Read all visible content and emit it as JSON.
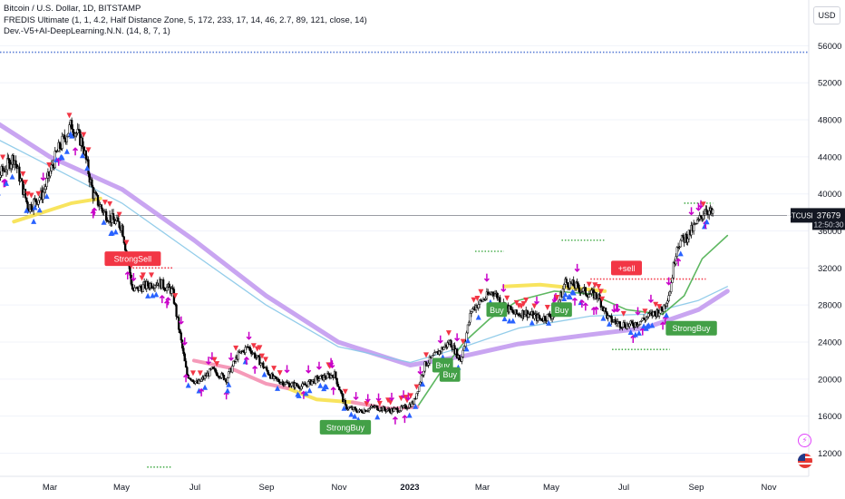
{
  "legend": {
    "symbol_line": "Bitcoin / U.S. Dollar, 1D, BITSTAMP",
    "indicator_1": "FREDIS Ultimate (1, 1, 4.2, Half Distance Zone, 5, 172, 233, 17, 14, 46, 2.7, 89, 121, close, 14)",
    "indicator_2": "Dev.-V5+AI-DeepLearning.N.N. (14, 8, 7, 1)"
  },
  "currency_button": "USD",
  "last_price_label": {
    "ticker": "BTCUSD",
    "price": "37679",
    "countdown": "12:50:30"
  },
  "signal_labels": {
    "strong_sell": "StrongSell",
    "strong_buy": "StrongBuy",
    "buy": "Buy",
    "sell": "+sell"
  },
  "colors": {
    "up_arrow": "#2962ff",
    "down_arrow": "#f23645",
    "magenta_arrow": "#c800c8",
    "strong_sell_bg": "#f23645",
    "strong_buy_bg": "#43a047",
    "purple_ma": "#c39bf0",
    "teal_ma": "#88c8e8",
    "yellow_line": "#f7e14c",
    "pink_line": "#f48fb1",
    "dotted_green": "#4caf50"
  },
  "icons": [
    "lightning-icon",
    "flag-icon"
  ],
  "chart_data": {
    "type": "candlestick",
    "symbol": "BTCUSD",
    "exchange": "BITSTAMP",
    "interval": "1D",
    "price_axis_ticks": [
      12000,
      16000,
      20000,
      24000,
      28000,
      32000,
      36000,
      40000,
      44000,
      48000,
      52000,
      56000
    ],
    "time_axis_labels": [
      "Mar",
      "May",
      "Jul",
      "Sep",
      "Nov",
      "2023",
      "Mar",
      "May",
      "Jul",
      "Sep",
      "Nov"
    ],
    "ylim": [
      9500,
      58000
    ],
    "last_price": 37679,
    "close_path": [
      {
        "m": 0.0,
        "v": 38500
      },
      {
        "m": 0.3,
        "v": 37000
      },
      {
        "m": 0.6,
        "v": 42000
      },
      {
        "m": 1.0,
        "v": 44000
      },
      {
        "m": 1.4,
        "v": 38500
      },
      {
        "m": 1.8,
        "v": 40000
      },
      {
        "m": 2.2,
        "v": 44500
      },
      {
        "m": 2.6,
        "v": 47500
      },
      {
        "m": 2.9,
        "v": 45500
      },
      {
        "m": 3.2,
        "v": 40000
      },
      {
        "m": 3.5,
        "v": 38000
      },
      {
        "m": 3.8,
        "v": 37000
      },
      {
        "m": 4.0,
        "v": 36500
      },
      {
        "m": 4.3,
        "v": 29500
      },
      {
        "m": 4.6,
        "v": 30000
      },
      {
        "m": 5.0,
        "v": 30500
      },
      {
        "m": 5.4,
        "v": 29500
      },
      {
        "m": 5.6,
        "v": 25000
      },
      {
        "m": 5.8,
        "v": 20500
      },
      {
        "m": 6.1,
        "v": 19500
      },
      {
        "m": 6.5,
        "v": 21000
      },
      {
        "m": 6.9,
        "v": 20000
      },
      {
        "m": 7.2,
        "v": 22500
      },
      {
        "m": 7.5,
        "v": 23500
      },
      {
        "m": 7.9,
        "v": 21500
      },
      {
        "m": 8.2,
        "v": 20000
      },
      {
        "m": 8.6,
        "v": 19500
      },
      {
        "m": 9.0,
        "v": 19200
      },
      {
        "m": 9.4,
        "v": 20000
      },
      {
        "m": 9.9,
        "v": 20500
      },
      {
        "m": 10.2,
        "v": 17000
      },
      {
        "m": 10.6,
        "v": 16500
      },
      {
        "m": 11.0,
        "v": 17000
      },
      {
        "m": 11.4,
        "v": 16600
      },
      {
        "m": 11.8,
        "v": 16800
      },
      {
        "m": 12.1,
        "v": 17500
      },
      {
        "m": 12.4,
        "v": 21500
      },
      {
        "m": 12.8,
        "v": 23000
      },
      {
        "m": 13.1,
        "v": 24000
      },
      {
        "m": 13.4,
        "v": 22000
      },
      {
        "m": 13.7,
        "v": 27500
      },
      {
        "m": 14.0,
        "v": 28500
      },
      {
        "m": 14.3,
        "v": 29500
      },
      {
        "m": 14.6,
        "v": 28000
      },
      {
        "m": 14.9,
        "v": 27000
      },
      {
        "m": 15.2,
        "v": 27200
      },
      {
        "m": 15.6,
        "v": 26500
      },
      {
        "m": 16.0,
        "v": 27000
      },
      {
        "m": 16.3,
        "v": 30500
      },
      {
        "m": 16.6,
        "v": 30000
      },
      {
        "m": 16.9,
        "v": 29300
      },
      {
        "m": 17.2,
        "v": 29000
      },
      {
        "m": 17.5,
        "v": 26500
      },
      {
        "m": 17.8,
        "v": 26000
      },
      {
        "m": 18.1,
        "v": 25800
      },
      {
        "m": 18.4,
        "v": 26300
      },
      {
        "m": 18.7,
        "v": 27000
      },
      {
        "m": 19.0,
        "v": 27500
      },
      {
        "m": 19.2,
        "v": 29500
      },
      {
        "m": 19.4,
        "v": 34500
      },
      {
        "m": 19.7,
        "v": 35500
      },
      {
        "m": 20.0,
        "v": 37000
      },
      {
        "m": 20.2,
        "v": 38500
      },
      {
        "m": 20.4,
        "v": 37679
      }
    ],
    "moving_averages": [
      {
        "name": "purple",
        "color": "#c39bf0",
        "points": [
          {
            "m": 0,
            "v": 49000
          },
          {
            "m": 2,
            "v": 44000
          },
          {
            "m": 4,
            "v": 40500
          },
          {
            "m": 6,
            "v": 35000
          },
          {
            "m": 8,
            "v": 29000
          },
          {
            "m": 10,
            "v": 24000
          },
          {
            "m": 12,
            "v": 21500
          },
          {
            "m": 13.5,
            "v": 22500
          },
          {
            "m": 15,
            "v": 23800
          },
          {
            "m": 17,
            "v": 24800
          },
          {
            "m": 18.5,
            "v": 25500
          },
          {
            "m": 20,
            "v": 27500
          },
          {
            "m": 20.8,
            "v": 29500
          }
        ]
      },
      {
        "name": "teal",
        "color": "#88c8e8",
        "points": [
          {
            "m": 0,
            "v": 47000
          },
          {
            "m": 2,
            "v": 43000
          },
          {
            "m": 4,
            "v": 39000
          },
          {
            "m": 6,
            "v": 33500
          },
          {
            "m": 8,
            "v": 28000
          },
          {
            "m": 10,
            "v": 23500
          },
          {
            "m": 12,
            "v": 21800
          },
          {
            "m": 13.5,
            "v": 23500
          },
          {
            "m": 15,
            "v": 25500
          },
          {
            "m": 17,
            "v": 26800
          },
          {
            "m": 18.5,
            "v": 27000
          },
          {
            "m": 20,
            "v": 28500
          },
          {
            "m": 20.8,
            "v": 30000
          }
        ]
      },
      {
        "name": "green",
        "color": "#4caf50",
        "points": [
          {
            "m": 12.2,
            "v": 17000
          },
          {
            "m": 12.8,
            "v": 20500
          },
          {
            "m": 13.5,
            "v": 24000
          },
          {
            "m": 14.2,
            "v": 26500
          },
          {
            "m": 15,
            "v": 28500
          },
          {
            "m": 16,
            "v": 29500
          },
          {
            "m": 17,
            "v": 29200
          },
          {
            "m": 18,
            "v": 27500
          },
          {
            "m": 19,
            "v": 27000
          },
          {
            "m": 19.6,
            "v": 29000
          },
          {
            "m": 20.1,
            "v": 33000
          },
          {
            "m": 20.8,
            "v": 35500
          }
        ]
      }
    ],
    "highlight_segments": [
      {
        "name": "yellow",
        "color": "#f7e14c",
        "points": [
          {
            "m": 1.0,
            "v": 37000
          },
          {
            "m": 1.8,
            "v": 38000
          },
          {
            "m": 2.6,
            "v": 39000
          },
          {
            "m": 3.4,
            "v": 39500
          }
        ]
      },
      {
        "name": "yellow",
        "color": "#f7e14c",
        "points": [
          {
            "m": 8.6,
            "v": 19000
          },
          {
            "m": 9.4,
            "v": 17800
          },
          {
            "m": 10.4,
            "v": 17500
          }
        ]
      },
      {
        "name": "yellow",
        "color": "#f7e14c",
        "points": [
          {
            "m": 14.6,
            "v": 30000
          },
          {
            "m": 15.6,
            "v": 30200
          },
          {
            "m": 16.6,
            "v": 29800
          },
          {
            "m": 17.4,
            "v": 29500
          }
        ]
      },
      {
        "name": "pink",
        "color": "#f48fb1",
        "points": [
          {
            "m": 6.0,
            "v": 22000
          },
          {
            "m": 7.0,
            "v": 21200
          },
          {
            "m": 8.0,
            "v": 19500
          },
          {
            "m": 8.6,
            "v": 19000
          }
        ]
      },
      {
        "name": "pink",
        "color": "#f48fb1",
        "points": [
          {
            "m": 10.4,
            "v": 17500
          },
          {
            "m": 11.4,
            "v": 16800
          },
          {
            "m": 12.2,
            "v": 17000
          }
        ]
      }
    ],
    "horizontal_levels": [
      {
        "v": 55300,
        "from_m": 0,
        "to_m": 21.8,
        "color": "#5b7fd6",
        "style": "dotted"
      },
      {
        "v": 37679,
        "from_m": 0,
        "to_m": 21.8,
        "color": "#787b86",
        "style": "solid"
      },
      {
        "v": 32000,
        "from_m": 4.3,
        "to_m": 5.4,
        "color": "#f23645",
        "style": "dotted"
      },
      {
        "v": 10500,
        "from_m": 4.7,
        "to_m": 5.4,
        "color": "#4caf50",
        "style": "dotted"
      },
      {
        "v": 33800,
        "from_m": 13.8,
        "to_m": 14.6,
        "color": "#4caf50",
        "style": "dotted"
      },
      {
        "v": 35000,
        "from_m": 16.2,
        "to_m": 17.4,
        "color": "#4caf50",
        "style": "dotted"
      },
      {
        "v": 30800,
        "from_m": 17.0,
        "to_m": 20.2,
        "color": "#f23645",
        "style": "dotted"
      },
      {
        "v": 23200,
        "from_m": 17.6,
        "to_m": 19.2,
        "color": "#4caf50",
        "style": "dotted"
      },
      {
        "v": 39000,
        "from_m": 19.6,
        "to_m": 20.4,
        "color": "#4caf50",
        "style": "dotted"
      }
    ],
    "signals": [
      {
        "type": "StrongSell",
        "m": 4.3,
        "v": 33000
      },
      {
        "type": "StrongBuy",
        "m": 10.2,
        "v": 14800
      },
      {
        "type": "Buy",
        "m": 12.9,
        "v": 21500
      },
      {
        "type": "Buy",
        "m": 13.1,
        "v": 20500
      },
      {
        "type": "Buy",
        "m": 14.4,
        "v": 27500
      },
      {
        "type": "Buy",
        "m": 16.2,
        "v": 27500
      },
      {
        "type": "+sell",
        "m": 18.0,
        "v": 32000
      },
      {
        "type": "StrongBuy",
        "m": 19.8,
        "v": 25500
      }
    ]
  }
}
